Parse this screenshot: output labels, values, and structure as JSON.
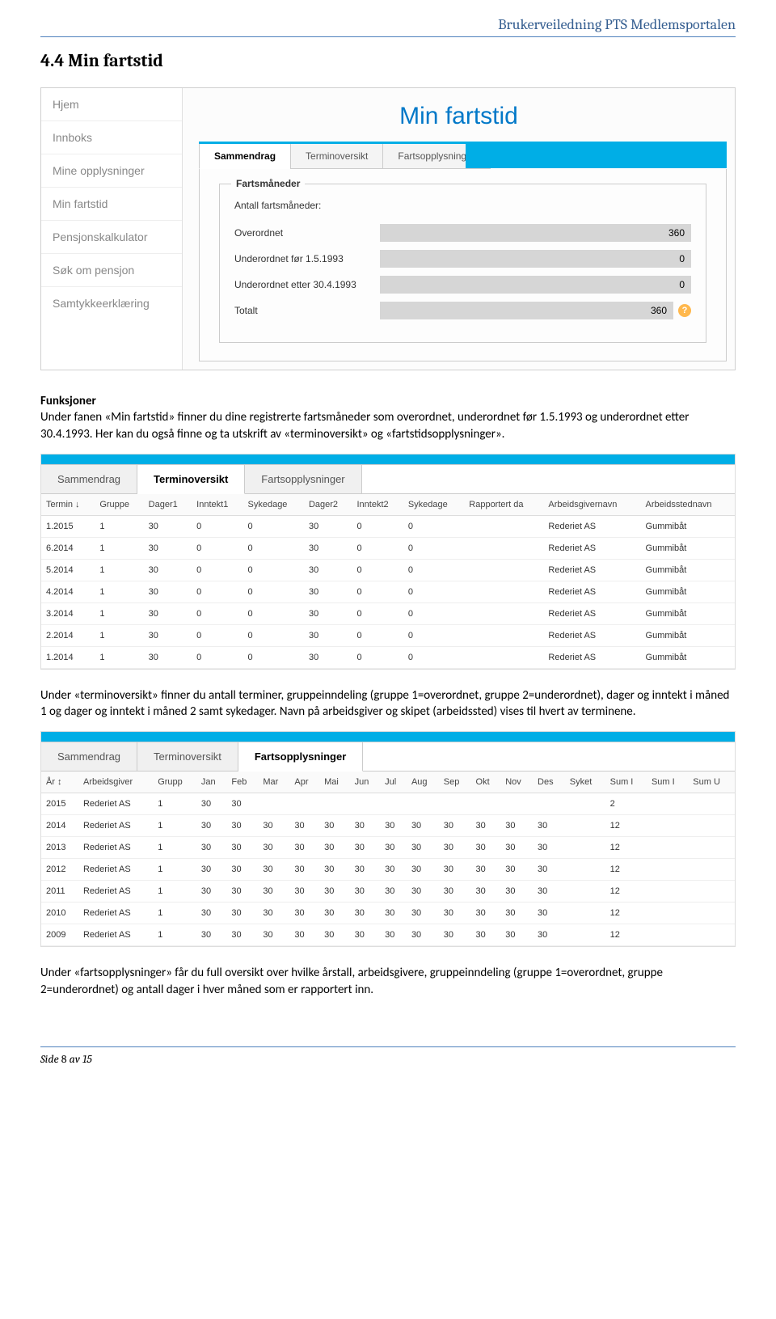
{
  "doc": {
    "header": "Brukerveiledning PTS Medlemsportalen",
    "section_title": "4.4  Min fartstid",
    "footer_label": "Side",
    "footer_page": "8",
    "footer_of": "av 15"
  },
  "ss1": {
    "nav": [
      "Hjem",
      "Innboks",
      "Mine opplysninger",
      "Min fartstid",
      "Pensjonskalkulator",
      "Søk om pensjon",
      "Samtykkeerklæring"
    ],
    "title": "Min fartstid",
    "tabs": [
      "Sammendrag",
      "Terminoversikt",
      "Fartsopplysninger"
    ],
    "active_tab": 0,
    "fieldset_legend": "Fartsmåneder",
    "sub_label": "Antall fartsmåneder:",
    "rows": [
      {
        "label": "Overordnet",
        "value": "360"
      },
      {
        "label": "Underordnet før 1.5.1993",
        "value": "0"
      },
      {
        "label": "Underordnet etter 30.4.1993",
        "value": "0"
      },
      {
        "label": "Totalt",
        "value": "360"
      }
    ],
    "help": "?"
  },
  "para1_heading": "Funksjoner",
  "para1": "Under fanen «Min fartstid» finner du dine registrerte fartsmåneder som overordnet, underordnet før 1.5.1993 og underordnet etter 30.4.1993. Her kan du også finne og ta utskrift av «terminoversikt» og «fartstidsopplysninger».",
  "ss2": {
    "tabs": [
      "Sammendrag",
      "Terminoversikt",
      "Fartsopplysninger"
    ],
    "active_tab": 1,
    "columns": [
      "Termin ↓",
      "Gruppe",
      "Dager1",
      "Inntekt1",
      "Sykedage",
      "Dager2",
      "Inntekt2",
      "Sykedage",
      "Rapportert da",
      "Arbeidsgivernavn",
      "Arbeidsstednavn"
    ],
    "rows": [
      [
        "1.2015",
        "1",
        "30",
        "0",
        "0",
        "30",
        "0",
        "0",
        "",
        "Rederiet AS",
        "Gummibåt"
      ],
      [
        "6.2014",
        "1",
        "30",
        "0",
        "0",
        "30",
        "0",
        "0",
        "",
        "Rederiet AS",
        "Gummibåt"
      ],
      [
        "5.2014",
        "1",
        "30",
        "0",
        "0",
        "30",
        "0",
        "0",
        "",
        "Rederiet AS",
        "Gummibåt"
      ],
      [
        "4.2014",
        "1",
        "30",
        "0",
        "0",
        "30",
        "0",
        "0",
        "",
        "Rederiet AS",
        "Gummibåt"
      ],
      [
        "3.2014",
        "1",
        "30",
        "0",
        "0",
        "30",
        "0",
        "0",
        "",
        "Rederiet AS",
        "Gummibåt"
      ],
      [
        "2.2014",
        "1",
        "30",
        "0",
        "0",
        "30",
        "0",
        "0",
        "",
        "Rederiet AS",
        "Gummibåt"
      ],
      [
        "1.2014",
        "1",
        "30",
        "0",
        "0",
        "30",
        "0",
        "0",
        "",
        "Rederiet AS",
        "Gummibåt"
      ]
    ]
  },
  "para2": "Under «terminoversikt» finner du antall terminer, gruppeinndeling (gruppe 1=overordnet, gruppe 2=underordnet), dager og inntekt i måned 1 og dager og inntekt i måned 2 samt sykedager. Navn på arbeidsgiver og skipet (arbeidssted) vises til hvert av terminene.",
  "ss3": {
    "tabs": [
      "Sammendrag",
      "Terminoversikt",
      "Fartsopplysninger"
    ],
    "active_tab": 2,
    "columns": [
      "År ↕",
      "Arbeidsgiver",
      "Grupp",
      "Jan",
      "Feb",
      "Mar",
      "Apr",
      "Mai",
      "Jun",
      "Jul",
      "Aug",
      "Sep",
      "Okt",
      "Nov",
      "Des",
      "Syket",
      "Sum I",
      "Sum I",
      "Sum U"
    ],
    "rows": [
      [
        "2015",
        "Rederiet AS",
        "1",
        "30",
        "30",
        "",
        "",
        "",
        "",
        "",
        "",
        "",
        "",
        "",
        "",
        "",
        "2",
        "",
        ""
      ],
      [
        "2014",
        "Rederiet AS",
        "1",
        "30",
        "30",
        "30",
        "30",
        "30",
        "30",
        "30",
        "30",
        "30",
        "30",
        "30",
        "30",
        "",
        "12",
        "",
        ""
      ],
      [
        "2013",
        "Rederiet AS",
        "1",
        "30",
        "30",
        "30",
        "30",
        "30",
        "30",
        "30",
        "30",
        "30",
        "30",
        "30",
        "30",
        "",
        "12",
        "",
        ""
      ],
      [
        "2012",
        "Rederiet AS",
        "1",
        "30",
        "30",
        "30",
        "30",
        "30",
        "30",
        "30",
        "30",
        "30",
        "30",
        "30",
        "30",
        "",
        "12",
        "",
        ""
      ],
      [
        "2011",
        "Rederiet AS",
        "1",
        "30",
        "30",
        "30",
        "30",
        "30",
        "30",
        "30",
        "30",
        "30",
        "30",
        "30",
        "30",
        "",
        "12",
        "",
        ""
      ],
      [
        "2010",
        "Rederiet AS",
        "1",
        "30",
        "30",
        "30",
        "30",
        "30",
        "30",
        "30",
        "30",
        "30",
        "30",
        "30",
        "30",
        "",
        "12",
        "",
        ""
      ],
      [
        "2009",
        "Rederiet AS",
        "1",
        "30",
        "30",
        "30",
        "30",
        "30",
        "30",
        "30",
        "30",
        "30",
        "30",
        "30",
        "30",
        "",
        "12",
        "",
        ""
      ]
    ]
  },
  "para3": "Under «fartsopplysninger» får du full oversikt over hvilke årstall, arbeidsgivere, gruppeinndeling (gruppe 1=overordnet, gruppe 2=underordnet) og antall dager i hver måned som er rapportert inn."
}
